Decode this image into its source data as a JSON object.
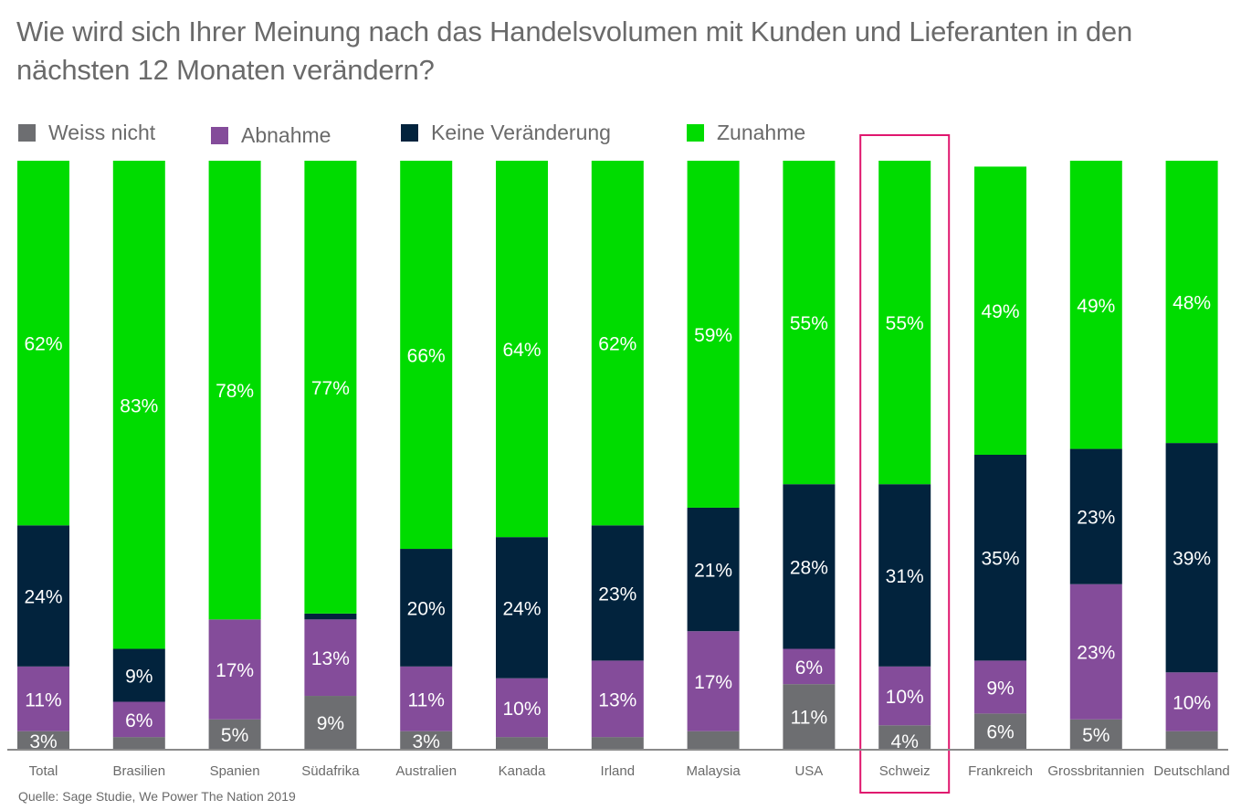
{
  "chart_data": {
    "type": "bar",
    "stacked": true,
    "title": "Wie wird sich Ihrer Meinung nach das Handelsvolumen mit Kunden und Lieferanten in den nächsten 12 Monaten verändern?",
    "xlabel": "",
    "ylabel": "",
    "ylim": [
      0,
      100
    ],
    "grid": false,
    "legend_position": "top-left",
    "categories": [
      "Total",
      "Brasilien",
      "Spanien",
      "Südafrika",
      "Australien",
      "Kanada",
      "Irland",
      "Malaysia",
      "USA",
      "Schweiz",
      "Frankreich",
      "Grossbritannien",
      "Deutschland"
    ],
    "highlighted_category": "Schweiz",
    "series": [
      {
        "name": "Weiss nicht",
        "color": "#6d6e71",
        "values": [
          3,
          null,
          5,
          9,
          3,
          null,
          null,
          null,
          11,
          4,
          6,
          5,
          null
        ]
      },
      {
        "name": "Abnahme",
        "color": "#844c9a",
        "values": [
          11,
          6,
          17,
          13,
          11,
          10,
          13,
          17,
          6,
          10,
          9,
          23,
          10
        ]
      },
      {
        "name": "Keine Veränderung",
        "color": "#02233d",
        "values": [
          24,
          9,
          null,
          null,
          20,
          24,
          23,
          21,
          28,
          31,
          35,
          23,
          39
        ]
      },
      {
        "name": "Zunahme",
        "color": "#00dc00",
        "values": [
          62,
          83,
          78,
          77,
          66,
          64,
          62,
          59,
          55,
          55,
          49,
          49,
          48
        ]
      }
    ],
    "inferred_values": {
      "note": "Segments drawn without a printed label; sizes estimated so each bar totals 100%.",
      "Weiss nicht": {
        "Brasilien": 2,
        "Kanada": 2,
        "Irland": 2,
        "Malaysia": 3,
        "Deutschland": 3
      },
      "Keine Veränderung": {
        "Südafrika": 1
      }
    },
    "data_labels": [
      [
        "3%",
        "",
        "5%",
        "9%",
        "3%",
        "",
        "",
        "",
        "11%",
        "4%",
        "6%",
        "5%",
        ""
      ],
      [
        "11%",
        "6%",
        "17%",
        "13%",
        "11%",
        "10%",
        "13%",
        "17%",
        "6%",
        "10%",
        "9%",
        "23%",
        "10%"
      ],
      [
        "24%",
        "9%",
        "",
        "",
        "20%",
        "24%",
        "23%",
        "21%",
        "28%",
        "31%",
        "35%",
        "23%",
        "39%"
      ],
      [
        "62%",
        "83%",
        "78%",
        "77%",
        "66%",
        "64%",
        "62%",
        "59%",
        "55%",
        "55%",
        "49%",
        "49%",
        "48%"
      ]
    ],
    "source": "Quelle: Sage Studie, We Power The Nation 2019"
  },
  "colors": {
    "highlight_box": "#e0176e",
    "axis": "#8a8a8a",
    "text": "#6a6a6a",
    "label_text": "#ffffff"
  }
}
